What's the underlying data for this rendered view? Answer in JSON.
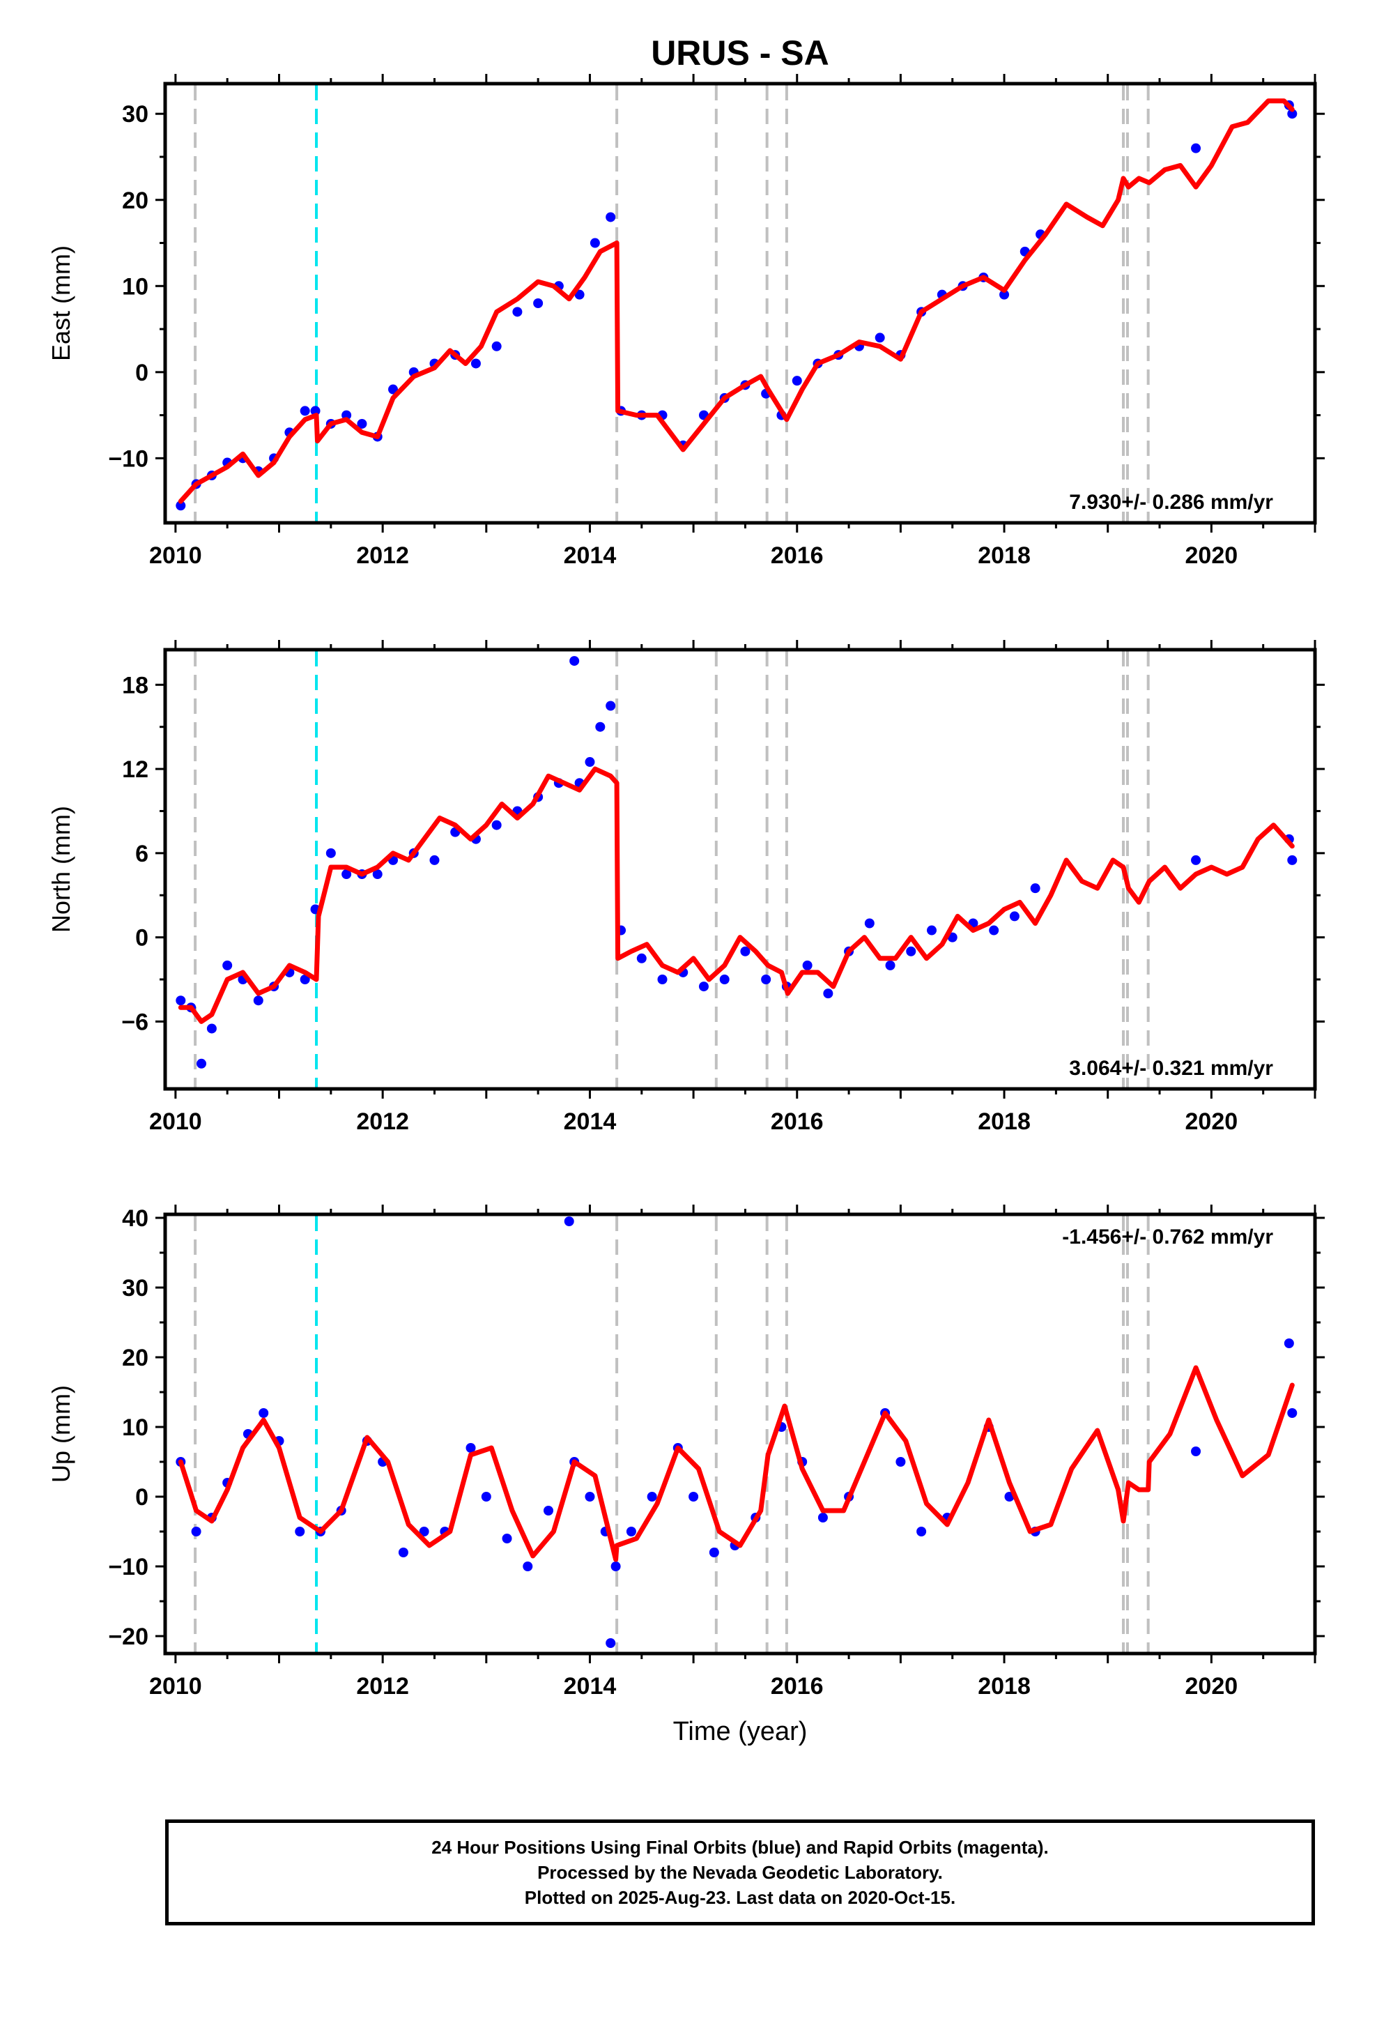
{
  "page": {
    "title": "URUS - SA"
  },
  "colors": {
    "data_points": "#0000ff",
    "model_line": "#ff0000",
    "equipment_change_line": "#c0c0c0",
    "earthquake_line": "#00e5ee",
    "frame": "#000000"
  },
  "icons": {
    "points": "filled-circle-marker",
    "events": "dashed-vertical-line"
  },
  "events": {
    "gray_epochs": [
      2010.19,
      2014.26,
      2015.22,
      2015.71,
      2015.9,
      2019.15,
      2019.19,
      2019.39
    ],
    "cyan_epochs": [
      2011.36
    ]
  },
  "chart_data": [
    {
      "type": "scatter",
      "panel": "east",
      "ylabel": "East (mm)",
      "xlabel": "",
      "rate_annotation": "7.930+/- 0.286 mm/yr",
      "annotation_position": "bottom-right",
      "xlim": [
        2009.9,
        2021.0
      ],
      "ylim": [
        -17.5,
        33.5
      ],
      "xticks": [
        2010,
        2012,
        2014,
        2016,
        2018,
        2020
      ],
      "yticks": [
        -10,
        0,
        10,
        20,
        30
      ],
      "series": [
        {
          "style": "points",
          "x": [
            2010.05,
            2010.2,
            2010.35,
            2010.5,
            2010.65,
            2010.8,
            2010.95,
            2011.1,
            2011.25,
            2011.35,
            2011.5,
            2011.65,
            2011.8,
            2011.95,
            2012.1,
            2012.3,
            2012.5,
            2012.7,
            2012.9,
            2013.1,
            2013.3,
            2013.5,
            2013.7,
            2013.9,
            2014.05,
            2014.2,
            2014.3,
            2014.5,
            2014.7,
            2014.9,
            2015.1,
            2015.3,
            2015.5,
            2015.7,
            2015.85,
            2016.0,
            2016.2,
            2016.4,
            2016.6,
            2016.8,
            2017.0,
            2017.2,
            2017.4,
            2017.6,
            2017.8,
            2018.0,
            2018.2,
            2018.35,
            2019.85,
            2020.75,
            2020.78
          ],
          "y": [
            -15.5,
            -13,
            -12,
            -10.5,
            -10,
            -11.5,
            -10,
            -7,
            -4.5,
            -4.5,
            -6,
            -5,
            -6,
            -7.5,
            -2,
            0,
            1,
            2,
            1,
            3,
            7,
            8,
            10,
            9,
            15,
            18,
            -4.5,
            -5,
            -5,
            -8.5,
            -5,
            -3,
            -1.5,
            -2.5,
            -5,
            -1,
            1,
            2,
            3,
            4,
            2,
            7,
            9,
            10,
            11,
            9,
            14,
            16,
            26,
            31,
            30
          ]
        },
        {
          "style": "line",
          "x": [
            2010.05,
            2010.2,
            2010.35,
            2010.5,
            2010.65,
            2010.8,
            2010.95,
            2011.1,
            2011.25,
            2011.36,
            2011.37,
            2011.5,
            2011.65,
            2011.8,
            2011.95,
            2012.1,
            2012.3,
            2012.5,
            2012.65,
            2012.8,
            2012.95,
            2013.1,
            2013.3,
            2013.5,
            2013.65,
            2013.8,
            2013.95,
            2014.1,
            2014.26,
            2014.27,
            2014.45,
            2014.65,
            2014.9,
            2015.1,
            2015.3,
            2015.5,
            2015.65,
            2015.72,
            2015.9,
            2016.05,
            2016.2,
            2016.4,
            2016.6,
            2016.8,
            2017.0,
            2017.2,
            2017.4,
            2017.6,
            2017.8,
            2018.0,
            2018.2,
            2018.4,
            2018.6,
            2018.8,
            2018.95,
            2019.1,
            2019.15,
            2019.2,
            2019.3,
            2019.4,
            2019.55,
            2019.7,
            2019.85,
            2020.0,
            2020.2,
            2020.35,
            2020.55,
            2020.7,
            2020.78
          ],
          "y": [
            -15,
            -13,
            -12,
            -11,
            -9.5,
            -12,
            -10.5,
            -7.5,
            -5.5,
            -5,
            -8,
            -6,
            -5.5,
            -7,
            -7.5,
            -3,
            -0.5,
            0.5,
            2.5,
            1,
            3,
            7,
            8.5,
            10.5,
            10,
            8.5,
            11,
            14,
            15,
            -4.5,
            -5,
            -5,
            -9,
            -6,
            -3,
            -1.5,
            -0.5,
            -2,
            -5.5,
            -2,
            1,
            2,
            3.5,
            3,
            1.5,
            7,
            8.5,
            10,
            11,
            9.5,
            13,
            16,
            19.5,
            18,
            17,
            20,
            22.5,
            21.5,
            22.5,
            22,
            23.5,
            24,
            21.5,
            24,
            28.5,
            29,
            31.5,
            31.5,
            30.5
          ]
        }
      ]
    },
    {
      "type": "scatter",
      "panel": "north",
      "ylabel": "North (mm)",
      "xlabel": "",
      "rate_annotation": "3.064+/- 0.321 mm/yr",
      "annotation_position": "bottom-right",
      "xlim": [
        2009.9,
        2021.0
      ],
      "ylim": [
        -10.8,
        20.5
      ],
      "xticks": [
        2010,
        2012,
        2014,
        2016,
        2018,
        2020
      ],
      "yticks": [
        -6,
        0,
        6,
        12,
        18
      ],
      "series": [
        {
          "style": "points",
          "x": [
            2010.05,
            2010.15,
            2010.25,
            2010.35,
            2010.5,
            2010.65,
            2010.8,
            2010.95,
            2011.1,
            2011.25,
            2011.35,
            2011.5,
            2011.65,
            2011.8,
            2011.95,
            2012.1,
            2012.3,
            2012.5,
            2012.7,
            2012.9,
            2013.1,
            2013.3,
            2013.5,
            2013.7,
            2013.9,
            2014.0,
            2014.1,
            2014.2,
            2014.3,
            2014.5,
            2014.7,
            2014.9,
            2015.1,
            2015.3,
            2015.5,
            2015.7,
            2015.9,
            2016.1,
            2016.3,
            2016.5,
            2016.7,
            2016.9,
            2017.1,
            2017.3,
            2017.5,
            2017.7,
            2017.9,
            2018.1,
            2018.3,
            2013.85,
            2019.85,
            2020.75,
            2020.78
          ],
          "y": [
            -4.5,
            -5,
            -9,
            -6.5,
            -2,
            -3,
            -4.5,
            -3.5,
            -2.5,
            -3,
            2,
            6,
            4.5,
            4.5,
            4.5,
            5.5,
            6,
            5.5,
            7.5,
            7,
            8,
            9,
            10,
            11,
            11,
            12.5,
            15,
            16.5,
            0.5,
            -1.5,
            -3,
            -2.5,
            -3.5,
            -3,
            -1,
            -3,
            -3.5,
            -2,
            -4,
            -1,
            1,
            -2,
            -1,
            0.5,
            0,
            1,
            0.5,
            1.5,
            3.5,
            19.7,
            5.5,
            7,
            5.5
          ]
        },
        {
          "style": "line",
          "x": [
            2010.05,
            2010.15,
            2010.25,
            2010.35,
            2010.5,
            2010.65,
            2010.8,
            2010.95,
            2011.1,
            2011.25,
            2011.36,
            2011.38,
            2011.5,
            2011.65,
            2011.8,
            2011.95,
            2012.1,
            2012.25,
            2012.4,
            2012.55,
            2012.7,
            2012.85,
            2013.0,
            2013.15,
            2013.3,
            2013.45,
            2013.6,
            2013.75,
            2013.9,
            2014.05,
            2014.2,
            2014.26,
            2014.27,
            2014.4,
            2014.55,
            2014.7,
            2014.85,
            2015.0,
            2015.15,
            2015.3,
            2015.45,
            2015.6,
            2015.72,
            2015.85,
            2015.91,
            2016.05,
            2016.2,
            2016.35,
            2016.5,
            2016.65,
            2016.8,
            2016.95,
            2017.1,
            2017.25,
            2017.4,
            2017.55,
            2017.7,
            2017.85,
            2018.0,
            2018.15,
            2018.3,
            2018.45,
            2018.6,
            2018.75,
            2018.9,
            2019.05,
            2019.15,
            2019.2,
            2019.3,
            2019.4,
            2019.55,
            2019.7,
            2019.85,
            2020.0,
            2020.15,
            2020.3,
            2020.45,
            2020.6,
            2020.78
          ],
          "y": [
            -5,
            -5,
            -6,
            -5.5,
            -3,
            -2.5,
            -4,
            -3.5,
            -2,
            -2.5,
            -3,
            1.5,
            5,
            5,
            4.5,
            5,
            6,
            5.5,
            7,
            8.5,
            8,
            7,
            8,
            9.5,
            8.5,
            9.5,
            11.5,
            11,
            10.5,
            12,
            11.5,
            11,
            -1.5,
            -1,
            -0.5,
            -2,
            -2.5,
            -1.5,
            -3,
            -2,
            0,
            -1,
            -2,
            -2.5,
            -4,
            -2.5,
            -2.5,
            -3.5,
            -1,
            0,
            -1.5,
            -1.5,
            0,
            -1.5,
            -0.5,
            1.5,
            0.5,
            1,
            2,
            2.5,
            1,
            3,
            5.5,
            4,
            3.5,
            5.5,
            5,
            3.5,
            2.5,
            4,
            5,
            3.5,
            4.5,
            5,
            4.5,
            5,
            7,
            8,
            6.5
          ]
        }
      ]
    },
    {
      "type": "scatter",
      "panel": "up",
      "ylabel": "Up (mm)",
      "xlabel": "Time (year)",
      "rate_annotation": "-1.456+/- 0.762 mm/yr",
      "annotation_position": "top-right",
      "xlim": [
        2009.9,
        2021.0
      ],
      "ylim": [
        -22.5,
        40.5
      ],
      "xticks": [
        2010,
        2012,
        2014,
        2016,
        2018,
        2020
      ],
      "yticks": [
        -20,
        -10,
        0,
        10,
        20,
        30,
        40
      ],
      "series": [
        {
          "style": "points",
          "x": [
            2010.05,
            2010.2,
            2010.35,
            2010.5,
            2010.7,
            2010.85,
            2011.0,
            2011.2,
            2011.4,
            2011.6,
            2011.85,
            2012.0,
            2012.2,
            2012.4,
            2012.6,
            2012.85,
            2013.0,
            2013.2,
            2013.4,
            2013.6,
            2013.85,
            2014.0,
            2014.15,
            2014.25,
            2014.4,
            2014.6,
            2014.85,
            2015.0,
            2015.2,
            2015.4,
            2015.6,
            2015.85,
            2016.05,
            2016.25,
            2016.5,
            2016.85,
            2017.0,
            2017.2,
            2017.45,
            2017.85,
            2018.05,
            2018.3,
            2013.8,
            2014.2,
            2019.85,
            2020.75,
            2020.78
          ],
          "y": [
            5,
            -5,
            -3,
            2,
            9,
            12,
            8,
            -5,
            -5,
            -2,
            8,
            5,
            -8,
            -5,
            -5,
            7,
            0,
            -6,
            -10,
            -2,
            5,
            0,
            -5,
            -10,
            -5,
            0,
            7,
            0,
            -8,
            -7,
            -3,
            10,
            5,
            -3,
            0,
            12,
            5,
            -5,
            -3,
            10,
            0,
            -5,
            39.5,
            -21,
            6.5,
            22,
            12
          ]
        },
        {
          "style": "line",
          "x": [
            2010.05,
            2010.2,
            2010.35,
            2010.5,
            2010.65,
            2010.85,
            2011.0,
            2011.2,
            2011.4,
            2011.6,
            2011.85,
            2012.05,
            2012.25,
            2012.45,
            2012.65,
            2012.85,
            2013.05,
            2013.25,
            2013.45,
            2013.65,
            2013.85,
            2014.05,
            2014.25,
            2014.26,
            2014.45,
            2014.65,
            2014.85,
            2015.05,
            2015.25,
            2015.45,
            2015.65,
            2015.72,
            2015.88,
            2016.05,
            2016.25,
            2016.45,
            2016.65,
            2016.85,
            2017.05,
            2017.25,
            2017.45,
            2017.65,
            2017.85,
            2018.05,
            2018.25,
            2018.45,
            2018.65,
            2018.9,
            2019.1,
            2019.15,
            2019.2,
            2019.3,
            2019.39,
            2019.4,
            2019.6,
            2019.85,
            2020.05,
            2020.3,
            2020.55,
            2020.78
          ],
          "y": [
            5,
            -2,
            -3.5,
            1,
            7,
            11,
            7,
            -3,
            -5,
            -2,
            8.5,
            5,
            -4,
            -7,
            -5,
            6,
            7,
            -2,
            -8.5,
            -5,
            5,
            3,
            -9,
            -7,
            -6,
            -1,
            7,
            4,
            -5,
            -7,
            -2,
            6,
            13,
            4,
            -2,
            -2,
            5,
            12,
            8,
            -1,
            -4,
            2,
            11,
            2,
            -5,
            -4,
            4,
            9.5,
            1,
            -3.5,
            2,
            1,
            1,
            5,
            9,
            18.5,
            11,
            3,
            6,
            16
          ]
        }
      ]
    }
  ],
  "footer": {
    "line1": "24 Hour Positions Using Final Orbits (blue) and Rapid Orbits (magenta).",
    "line2": "Processed by the Nevada Geodetic Laboratory.",
    "line3": "Plotted on 2025-Aug-23. Last data on 2020-Oct-15."
  }
}
